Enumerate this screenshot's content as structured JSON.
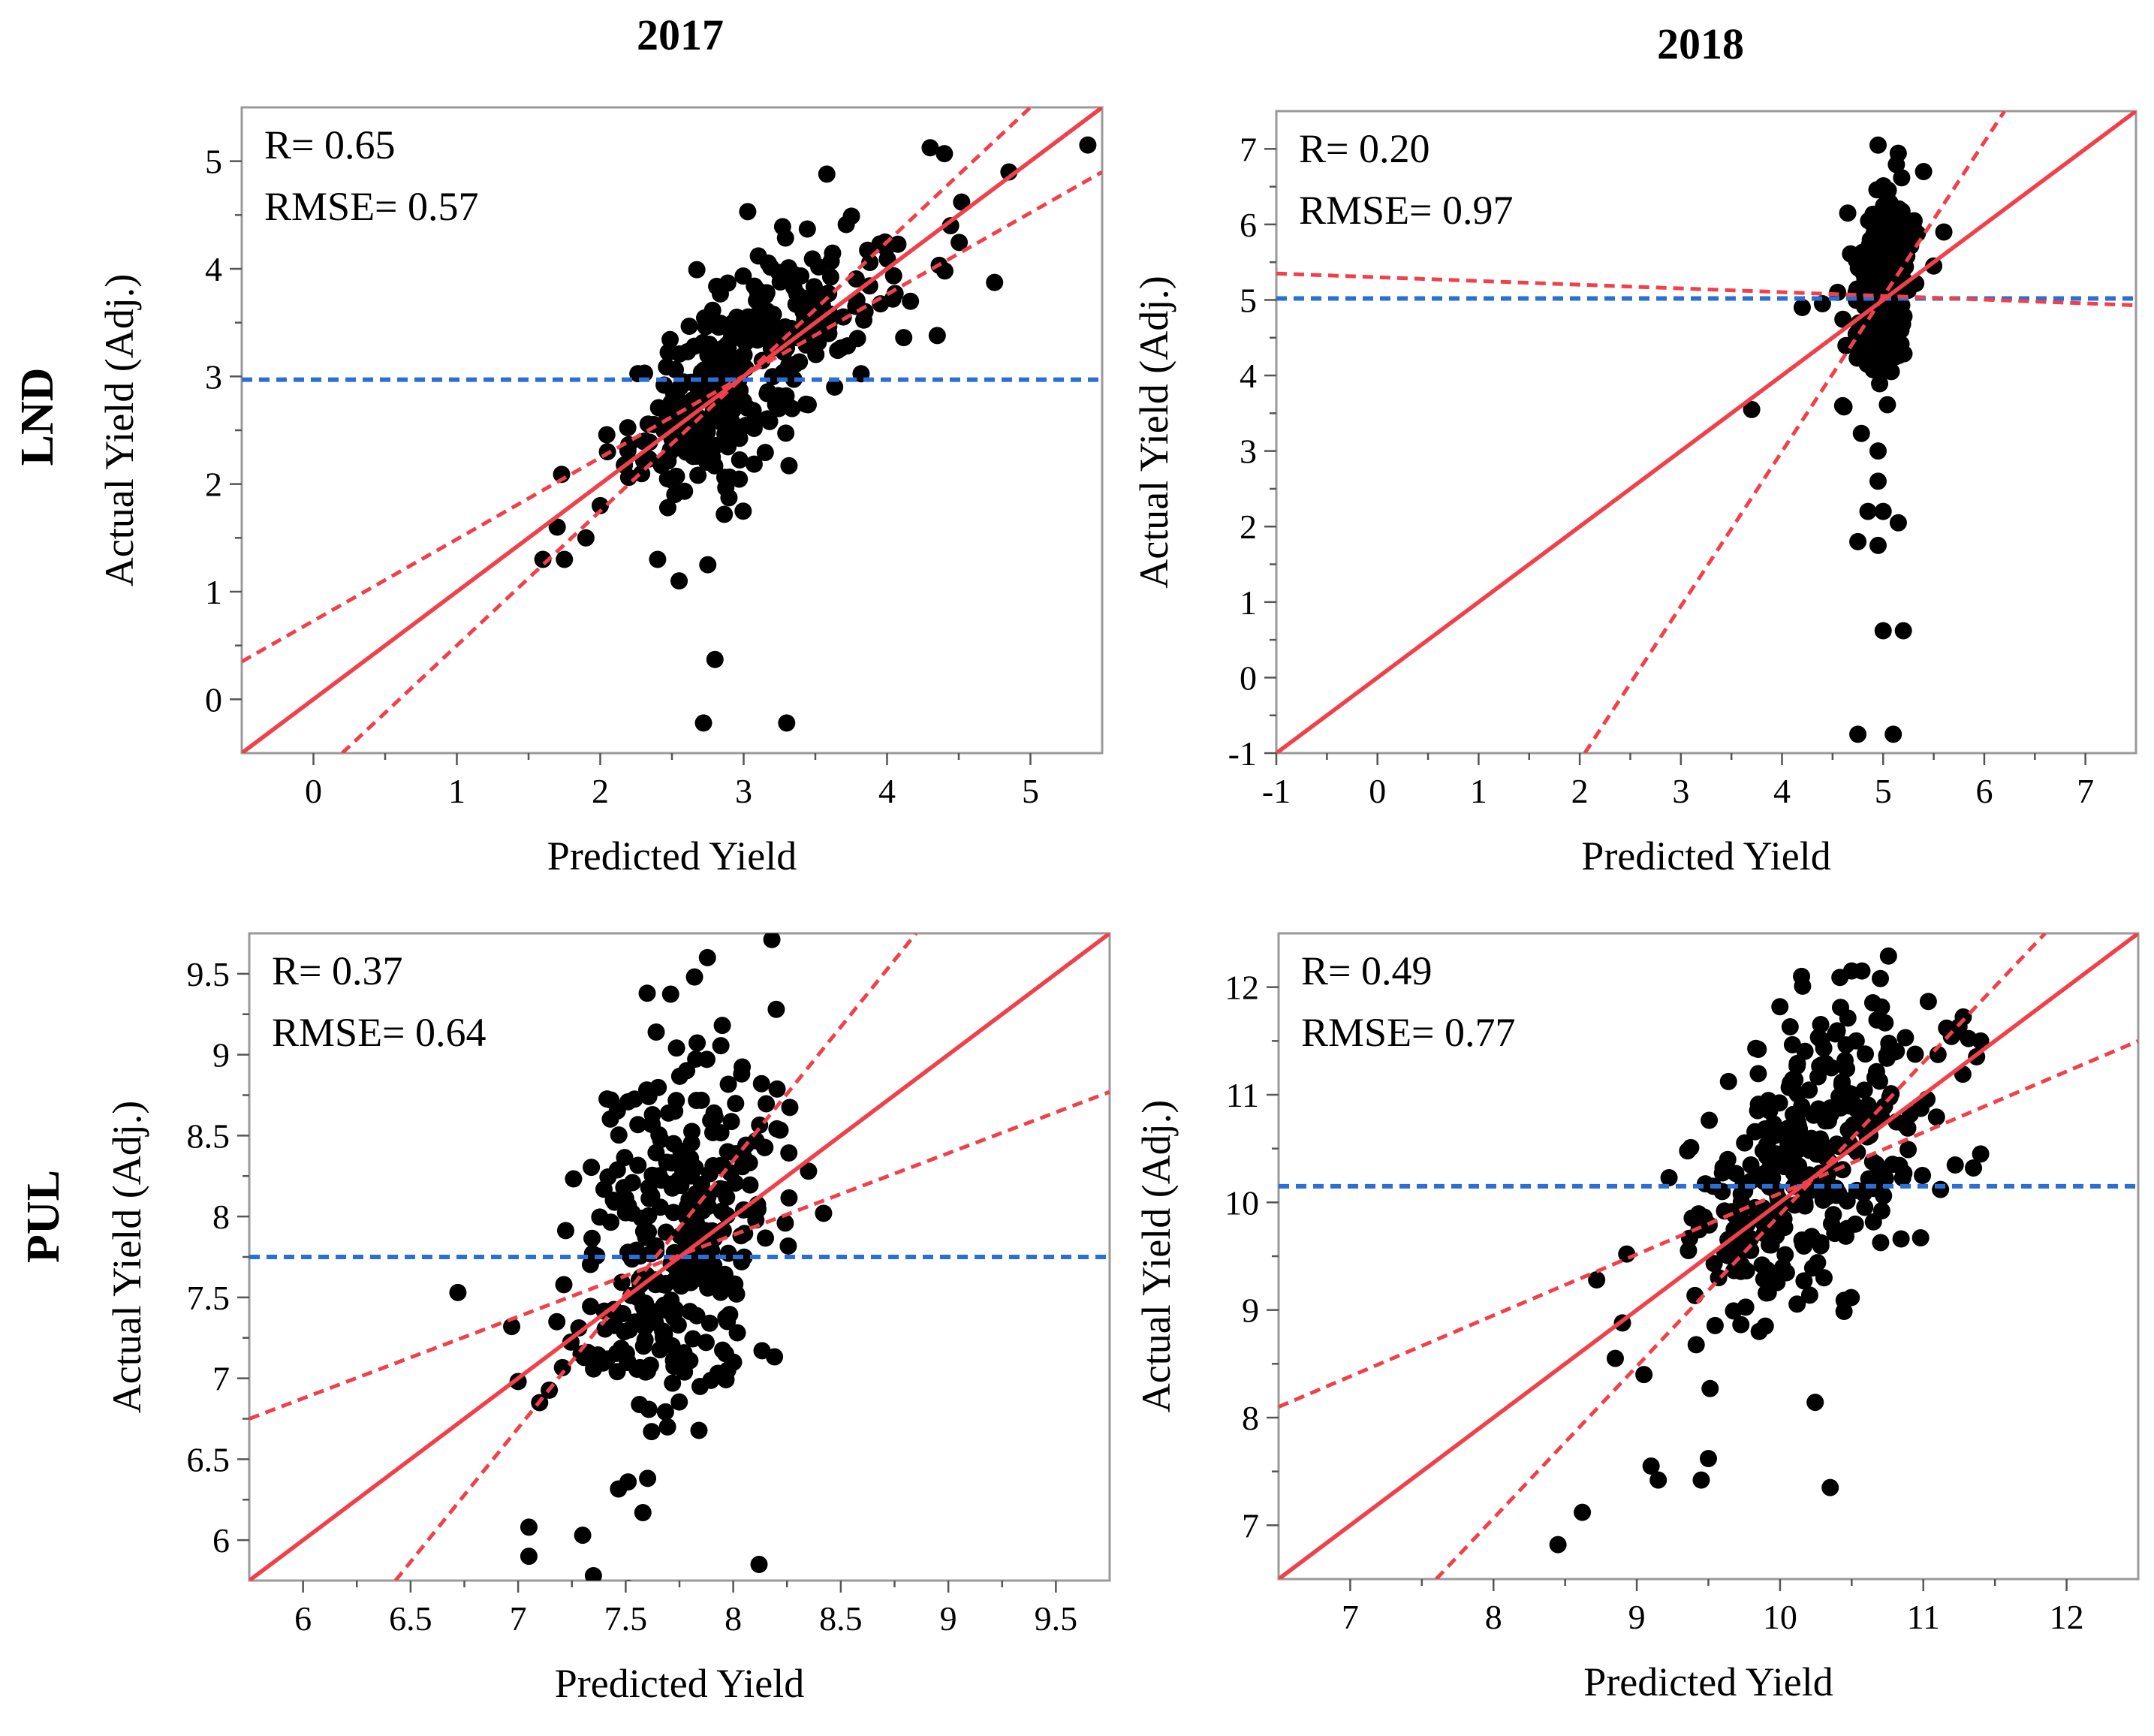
{
  "figure": {
    "column_titles": [
      "2017",
      "2018"
    ],
    "row_titles": [
      "LND",
      "PUL"
    ],
    "colors": {
      "fit_line": "#f0414b",
      "mean_line": "#2a6fd8",
      "points": "#000000"
    }
  },
  "chart_data": [
    {
      "type": "scatter",
      "id": "lnd-2017",
      "row": "LND",
      "column": "2017",
      "xlabel": "Predicted Yield",
      "ylabel": "Actual Yield (Adj.)",
      "xlim": [
        -0.5,
        5.5
      ],
      "ylim": [
        -0.5,
        5.5
      ],
      "xticks": [
        0,
        1,
        2,
        3,
        4,
        5
      ],
      "yticks": [
        0,
        1,
        2,
        3,
        4,
        5
      ],
      "xtick_labels": [
        "0",
        "1",
        "2",
        "3",
        "4",
        "5"
      ],
      "ytick_labels": [
        "0",
        "1",
        "2",
        "3",
        "4",
        "5"
      ],
      "annotation": {
        "r_text": "R= 0.65",
        "rmse_text": "RMSE= 0.57"
      },
      "mean_y": 2.97,
      "fit_line": [
        [
          -0.5,
          -0.5
        ],
        [
          5.5,
          5.5
        ]
      ],
      "confidence_lines": [
        [
          [
            -0.5,
            0.35
          ],
          [
            5.5,
            4.9
          ]
        ],
        [
          [
            0.2,
            -0.5
          ],
          [
            5.0,
            5.5
          ]
        ]
      ],
      "clusters": [
        {
          "cx": 2.85,
          "cy": 2.9,
          "sx": 0.32,
          "sy": 0.5,
          "rho": 0.55,
          "n": 260
        },
        {
          "cx": 3.7,
          "cy": 3.9,
          "sx": 0.35,
          "sy": 0.45,
          "rho": 0.5,
          "n": 70
        }
      ],
      "points": [
        [
          1.6,
          1.3
        ],
        [
          1.75,
          1.3
        ],
        [
          1.7,
          1.6
        ],
        [
          2.4,
          1.3
        ],
        [
          2.55,
          1.1
        ],
        [
          2.75,
          1.25
        ],
        [
          2.8,
          0.37
        ],
        [
          2.72,
          -0.22
        ],
        [
          3.3,
          -0.22
        ],
        [
          4.35,
          3.38
        ],
        [
          4.4,
          5.07
        ],
        [
          4.85,
          4.9
        ],
        [
          5.4,
          5.15
        ],
        [
          4.52,
          4.62
        ],
        [
          3.58,
          4.88
        ],
        [
          1.9,
          1.5
        ],
        [
          2.05,
          2.3
        ],
        [
          2.0,
          1.8
        ]
      ]
    },
    {
      "type": "scatter",
      "id": "lnd-2018",
      "row": "LND",
      "column": "2018",
      "xlabel": "Predicted Yield",
      "ylabel": "Actual Yield (Adj.)",
      "xlim": [
        -1,
        7.5
      ],
      "ylim": [
        -1,
        7.5
      ],
      "xticks": [
        -1,
        0,
        1,
        2,
        3,
        4,
        5,
        6,
        7
      ],
      "yticks": [
        -1,
        0,
        1,
        2,
        3,
        4,
        5,
        6,
        7
      ],
      "xtick_labels": [
        "-1",
        "0",
        "1",
        "2",
        "3",
        "4",
        "5",
        "6",
        "7"
      ],
      "ytick_labels": [
        "-1",
        "0",
        "1",
        "2",
        "3",
        "4",
        "5",
        "6",
        "7"
      ],
      "annotation": {
        "r_text": "R= 0.20",
        "rmse_text": "RMSE= 0.97"
      },
      "mean_y": 5.02,
      "fit_line": [
        [
          -1,
          -1
        ],
        [
          7.5,
          7.5
        ]
      ],
      "confidence_lines": [
        [
          [
            -1,
            5.35
          ],
          [
            7.5,
            4.93
          ]
        ],
        [
          [
            2.05,
            -1
          ],
          [
            6.2,
            7.5
          ]
        ]
      ],
      "clusters": [
        {
          "cx": 5.0,
          "cy": 5.2,
          "sx": 0.12,
          "sy": 0.62,
          "rho": 0.1,
          "n": 330
        }
      ],
      "points": [
        [
          3.7,
          3.55
        ],
        [
          4.75,
          1.8
        ],
        [
          4.95,
          1.75
        ],
        [
          4.85,
          2.2
        ],
        [
          5.0,
          2.2
        ],
        [
          5.15,
          2.05
        ],
        [
          5.0,
          0.62
        ],
        [
          5.2,
          0.62
        ],
        [
          4.75,
          -0.75
        ],
        [
          5.1,
          -0.75
        ],
        [
          4.4,
          4.95
        ],
        [
          4.2,
          4.9
        ],
        [
          4.55,
          5.1
        ],
        [
          5.5,
          5.45
        ],
        [
          5.6,
          5.9
        ],
        [
          4.95,
          7.05
        ],
        [
          4.95,
          2.6
        ],
        [
          4.95,
          3.0
        ],
        [
          4.6,
          3.6
        ],
        [
          5.4,
          6.7
        ],
        [
          4.65,
          6.15
        ]
      ]
    },
    {
      "type": "scatter",
      "id": "pul-2017",
      "row": "PUL",
      "column": "2017",
      "xlabel": "Predicted Yield",
      "ylabel": "Actual Yield (Adj.)",
      "xlim": [
        5.75,
        9.75
      ],
      "ylim": [
        5.75,
        9.75
      ],
      "xticks": [
        6,
        6.5,
        7,
        7.5,
        8,
        8.5,
        9,
        9.5
      ],
      "yticks": [
        6,
        6.5,
        7,
        7.5,
        8,
        8.5,
        9,
        9.5
      ],
      "xtick_labels": [
        "6",
        "6.5",
        "7",
        "7.5",
        "8",
        "8.5",
        "9",
        "9.5"
      ],
      "ytick_labels": [
        "6",
        "6.5",
        "7",
        "7.5",
        "8",
        "8.5",
        "9",
        "9.5"
      ],
      "annotation": {
        "r_text": "R= 0.37",
        "rmse_text": "RMSE= 0.64"
      },
      "mean_y": 7.75,
      "fit_line": [
        [
          5.75,
          5.75
        ],
        [
          9.75,
          9.75
        ]
      ],
      "confidence_lines": [
        [
          [
            5.75,
            6.75
          ],
          [
            9.75,
            8.77
          ]
        ],
        [
          [
            6.43,
            5.75
          ],
          [
            8.85,
            9.75
          ]
        ]
      ],
      "clusters": [
        {
          "cx": 7.75,
          "cy": 7.85,
          "sx": 0.23,
          "sy": 0.62,
          "rho": 0.3,
          "n": 330
        }
      ],
      "points": [
        [
          6.72,
          7.53
        ],
        [
          6.97,
          7.32
        ],
        [
          7.0,
          6.98
        ],
        [
          7.05,
          6.08
        ],
        [
          7.05,
          5.9
        ],
        [
          7.3,
          6.03
        ],
        [
          7.35,
          5.78
        ],
        [
          8.12,
          5.85
        ],
        [
          7.6,
          9.38
        ],
        [
          7.88,
          9.6
        ],
        [
          7.82,
          9.48
        ],
        [
          8.42,
          8.02
        ],
        [
          8.35,
          8.28
        ],
        [
          8.2,
          9.28
        ],
        [
          7.58,
          6.17
        ],
        [
          7.18,
          7.35
        ],
        [
          7.1,
          6.85
        ]
      ]
    },
    {
      "type": "scatter",
      "id": "pul-2018",
      "row": "PUL",
      "column": "2018",
      "xlabel": "Predicted Yield",
      "ylabel": "Actual Yield (Adj.)",
      "xlim": [
        6.5,
        12.5
      ],
      "ylim": [
        6.5,
        12.5
      ],
      "xticks": [
        7,
        8,
        9,
        10,
        11,
        12
      ],
      "yticks": [
        7,
        8,
        9,
        10,
        11,
        12
      ],
      "xtick_labels": [
        "7",
        "8",
        "9",
        "10",
        "11",
        "12"
      ],
      "ytick_labels": [
        "7",
        "8",
        "9",
        "10",
        "11",
        "12"
      ],
      "annotation": {
        "r_text": "R= 0.49",
        "rmse_text": "RMSE= 0.77"
      },
      "mean_y": 10.15,
      "fit_line": [
        [
          6.5,
          6.5
        ],
        [
          12.5,
          12.5
        ]
      ],
      "confidence_lines": [
        [
          [
            6.5,
            8.1
          ],
          [
            12.5,
            11.5
          ]
        ],
        [
          [
            7.6,
            6.5
          ],
          [
            11.85,
            12.5
          ]
        ]
      ],
      "clusters": [
        {
          "cx": 10.2,
          "cy": 10.35,
          "sx": 0.42,
          "sy": 0.75,
          "rho": 0.45,
          "n": 330
        }
      ],
      "points": [
        [
          8.45,
          6.82
        ],
        [
          8.62,
          7.12
        ],
        [
          8.72,
          9.28
        ],
        [
          8.85,
          8.55
        ],
        [
          8.9,
          8.88
        ],
        [
          8.93,
          9.52
        ],
        [
          9.05,
          8.4
        ],
        [
          9.1,
          7.55
        ],
        [
          9.15,
          7.42
        ],
        [
          9.45,
          7.42
        ],
        [
          9.5,
          7.62
        ],
        [
          10.35,
          7.35
        ],
        [
          11.35,
          10.32
        ],
        [
          11.4,
          11.5
        ],
        [
          11.12,
          10.12
        ],
        [
          11.4,
          10.45
        ],
        [
          10.15,
          12.1
        ],
        [
          10.5,
          12.15
        ],
        [
          10.7,
          12.08
        ]
      ]
    }
  ]
}
